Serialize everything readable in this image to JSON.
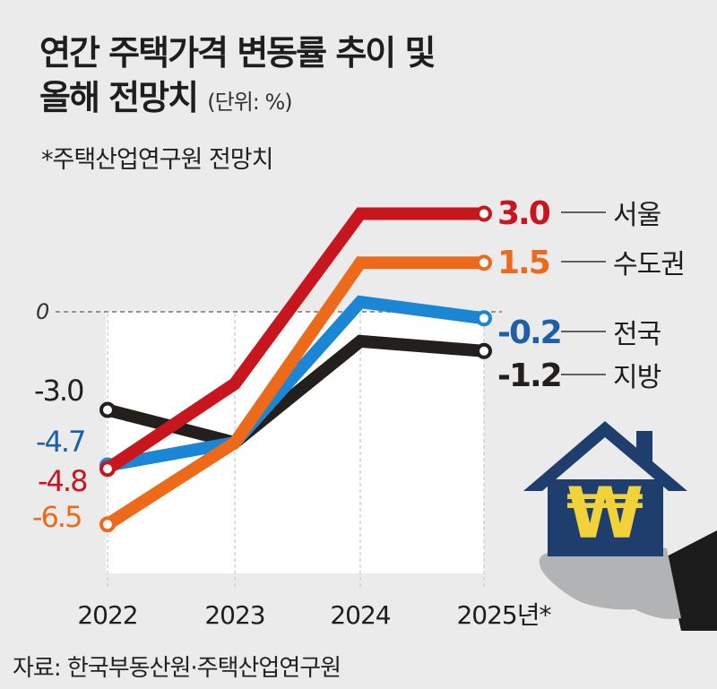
{
  "title_line1": "연간 주택가격 변동률 추이 및",
  "title_line2": "올해 전망치",
  "unit": "(단위: %)",
  "note": "*주택산업연구원 전망치",
  "source": "자료: 한국부동산원·주택산업연구원",
  "chart_data": {
    "type": "line",
    "categories": [
      "2022",
      "2023",
      "2024",
      "2025년*"
    ],
    "zero_label": "0",
    "ylim": [
      -7,
      3.5
    ],
    "series": [
      {
        "name": "서울",
        "color": "#c8161e",
        "values": [
          -4.8,
          -2.2,
          3.0,
          3.0
        ],
        "end_label": "3.0",
        "start_label": "-4.8"
      },
      {
        "name": "수도권",
        "color": "#ee6a1b",
        "values": [
          -6.5,
          -4.0,
          1.5,
          1.5
        ],
        "end_label": "1.5",
        "start_label": "-6.5"
      },
      {
        "name": "전국",
        "color": "#1a86d4",
        "values": [
          -4.7,
          -4.0,
          0.3,
          -0.2
        ],
        "end_label": "-0.2",
        "start_label": "-4.7",
        "start_label_color": "#1d5fa8",
        "end_label_color": "#1d5fa8"
      },
      {
        "name": "지방",
        "color": "#231f1d",
        "values": [
          -3.0,
          -4.0,
          -0.9,
          -1.2
        ],
        "end_label": "-1.2",
        "start_label": "-3.0"
      }
    ]
  },
  "illustration": {
    "symbol": "₩",
    "house_color": "#1e3e6e",
    "symbol_color": "#f2d23a"
  }
}
